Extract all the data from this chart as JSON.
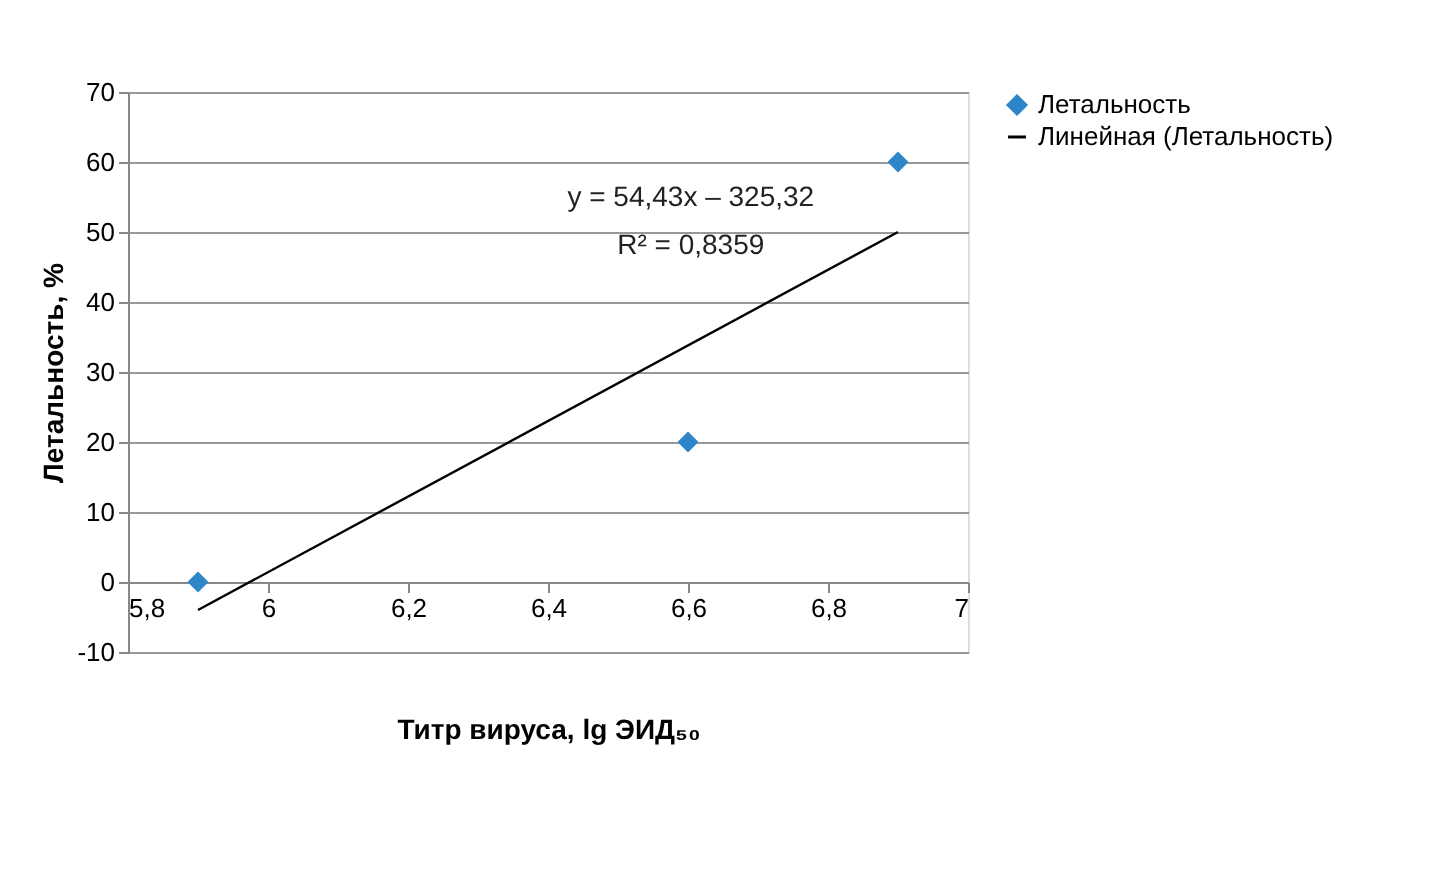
{
  "chart_data": {
    "type": "scatter",
    "xlabel": "Титр вируса, lg ЭИД₅₀",
    "ylabel": "Летальность, %",
    "xlim": [
      5.8,
      7
    ],
    "xticks": [
      {
        "value": 5.8,
        "label": "5,8"
      },
      6,
      {
        "value": 6.2,
        "label": "6,2"
      },
      {
        "value": 6.4,
        "label": "6,4"
      },
      {
        "value": 6.6,
        "label": "6,6"
      },
      {
        "value": 6.8,
        "label": "6,8"
      },
      7
    ],
    "ylim": [
      -10,
      70
    ],
    "yticks": [
      -10,
      0,
      10,
      20,
      30,
      40,
      50,
      60,
      70
    ],
    "grid": "y",
    "legend": "right",
    "series": [
      {
        "name": "Летальность",
        "marker": "diamond",
        "color": "#2e86c8",
        "x": [
          5.9,
          6.6,
          6.9
        ],
        "values": [
          0,
          20,
          60
        ]
      },
      {
        "name": "Линейная (Летальность)",
        "type": "line",
        "marker": "none",
        "color": "#000000",
        "x": [
          5.9,
          6.9
        ],
        "values": [
          -4,
          50
        ]
      }
    ],
    "annotations": [
      "y = 54,43x – 325,32",
      "R² = 0,8359"
    ]
  }
}
